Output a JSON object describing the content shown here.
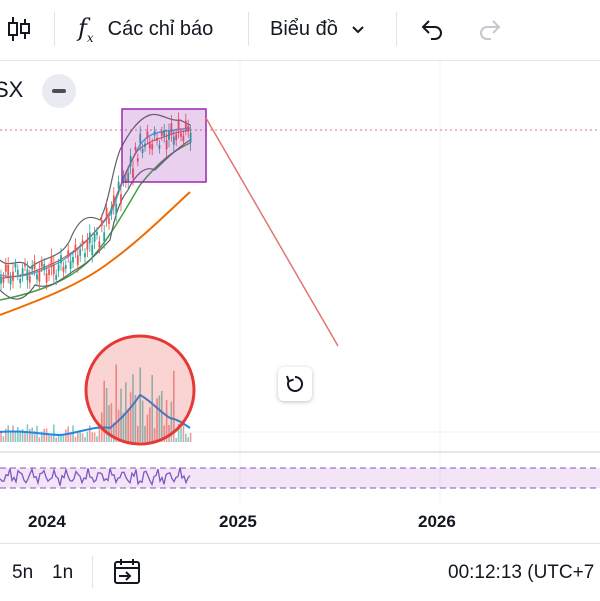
{
  "toolbar": {
    "candles_icon": "candlestick-icon",
    "indicators_label": "Các chỉ báo",
    "layout_label": "Biểu đồ",
    "undo_icon": "undo-icon",
    "redo_icon": "redo-icon"
  },
  "symbol": {
    "label": "SX"
  },
  "time_axis": {
    "labels": [
      "2024",
      "2025",
      "2026"
    ]
  },
  "bottom_bar": {
    "range_5y": "5n",
    "range_1y": "1n",
    "goto_icon": "go-to-date-icon",
    "clock": "00:12:13 (UTC+7"
  },
  "colors": {
    "highlight_box": "#9c27b0",
    "circle": "#e53935",
    "trend_line": "#e57373",
    "ma_green": "#43a047",
    "ma_orange": "#ef6c00",
    "volume_ma": "#1e88e5",
    "rsi_line": "#7e57c2"
  }
}
